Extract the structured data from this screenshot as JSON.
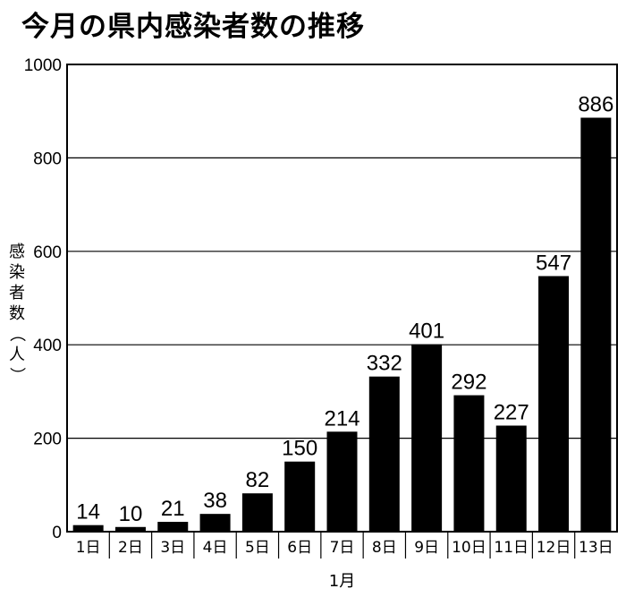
{
  "chart_data": {
    "type": "bar",
    "title": "今月の県内感染者数の推移",
    "xlabel": "1月",
    "ylabel": "感染者数（人）",
    "categories": [
      "1日",
      "2日",
      "3日",
      "4日",
      "5日",
      "6日",
      "7日",
      "8日",
      "9日",
      "10日",
      "11日",
      "12日",
      "13日"
    ],
    "values": [
      14,
      10,
      21,
      38,
      82,
      150,
      214,
      332,
      401,
      292,
      227,
      547,
      886
    ],
    "ylim": [
      0,
      1000
    ],
    "yticks": [
      0,
      200,
      400,
      600,
      800,
      1000
    ],
    "grid": true,
    "bar_color": "#000000",
    "legend": "none"
  }
}
